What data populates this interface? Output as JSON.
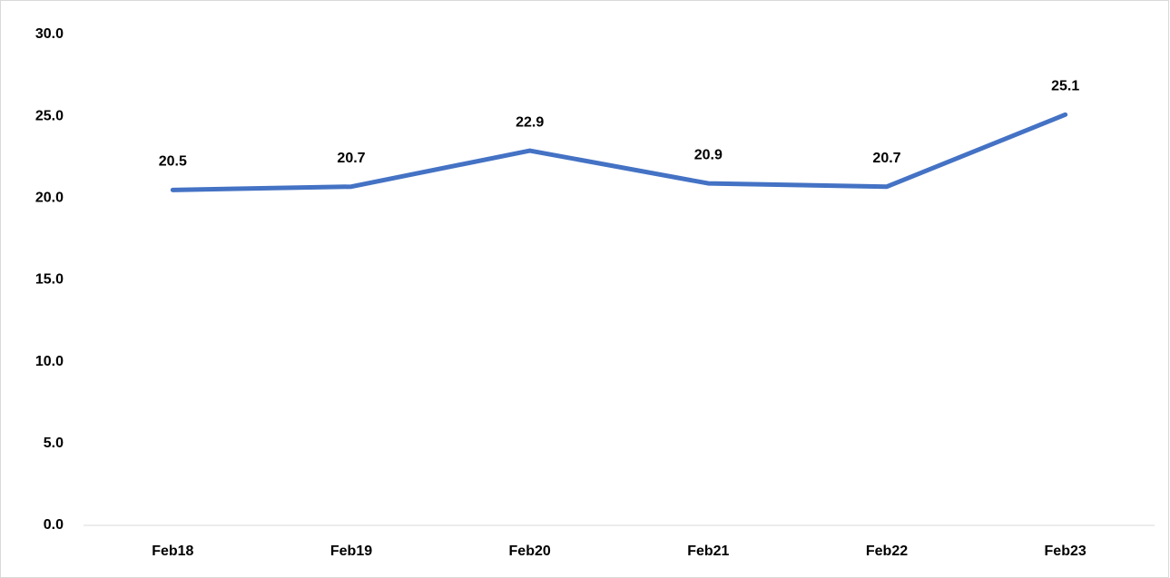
{
  "chart_data": {
    "type": "line",
    "categories": [
      "Feb18",
      "Feb19",
      "Feb20",
      "Feb21",
      "Feb22",
      "Feb23"
    ],
    "series": [
      {
        "color": "#4472c4",
        "values": [
          20.5,
          20.7,
          22.9,
          20.9,
          20.7,
          25.1
        ]
      }
    ],
    "ylim": [
      0,
      30
    ],
    "yticks": [
      {
        "value": 0,
        "label": "0.0"
      },
      {
        "value": 5,
        "label": "5.0"
      },
      {
        "value": 10,
        "label": "10.0"
      },
      {
        "value": 15,
        "label": "15.0"
      },
      {
        "value": 20,
        "label": "20.0"
      },
      {
        "value": 25,
        "label": "25.0"
      },
      {
        "value": 30,
        "label": "30.0"
      }
    ],
    "grid": false
  }
}
